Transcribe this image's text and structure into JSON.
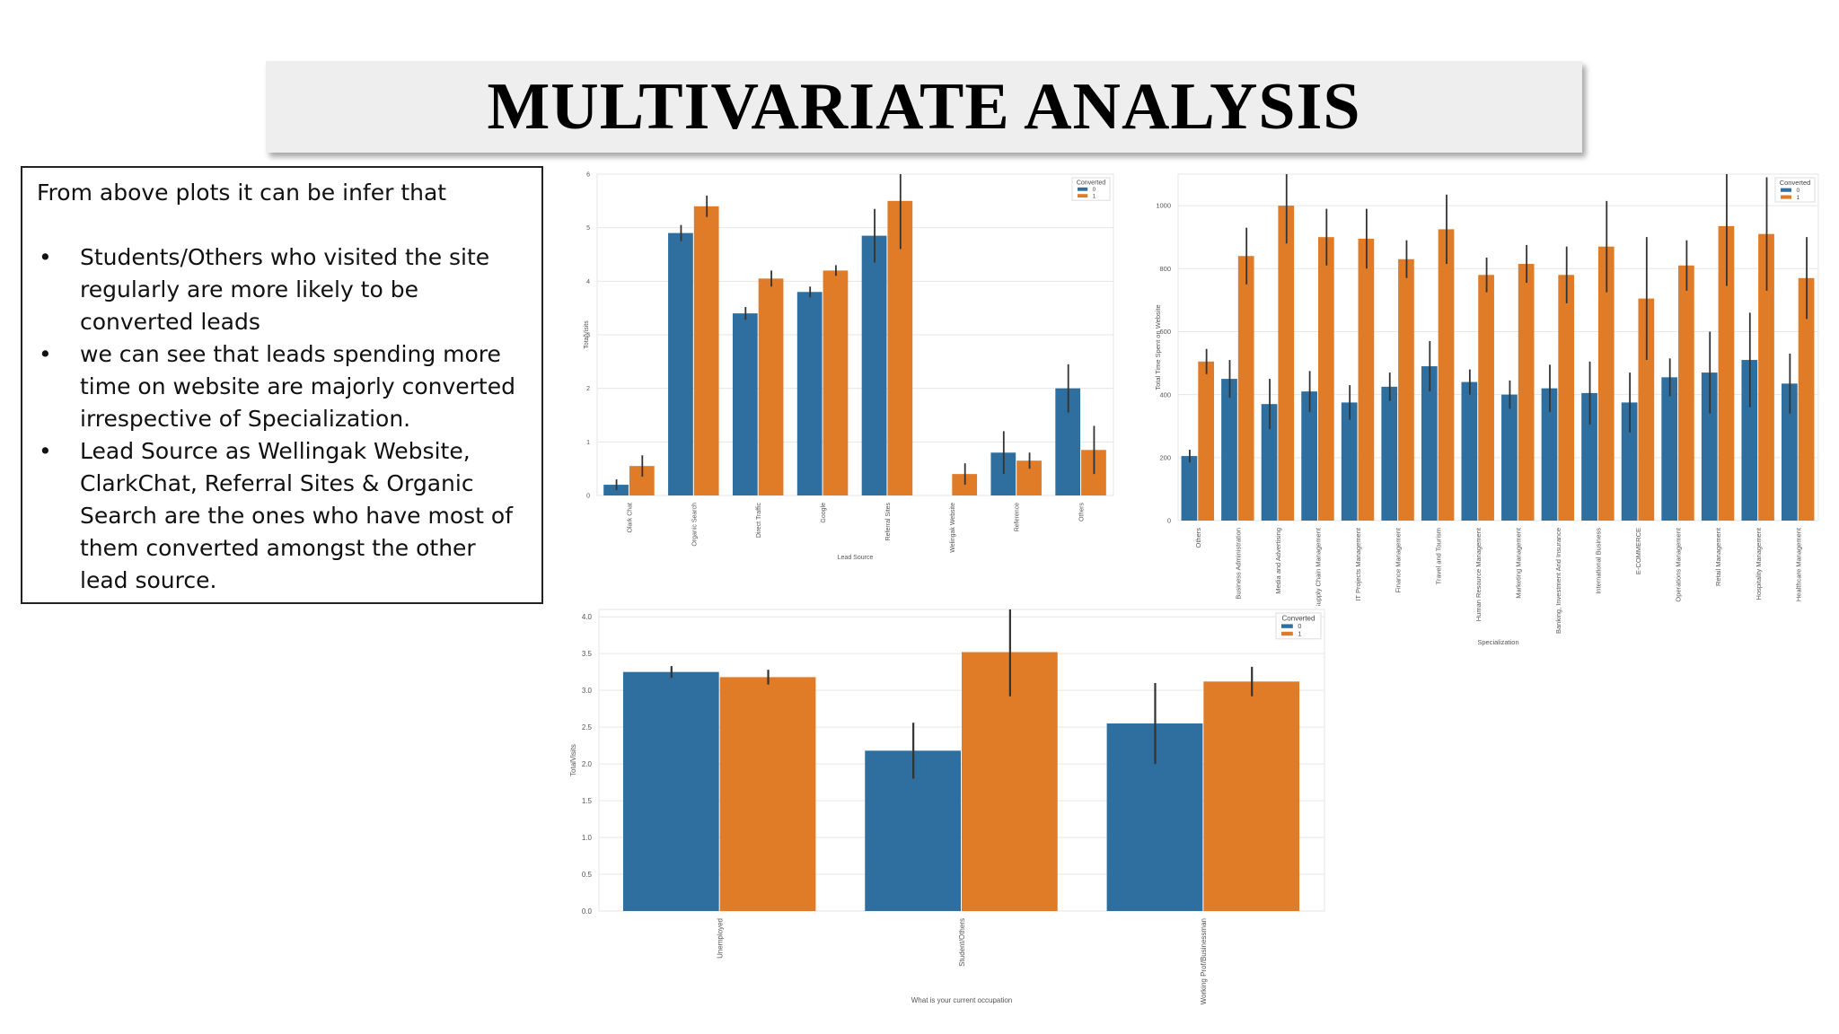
{
  "slide": {
    "title": "MULTIVARIATE ANALYSIS",
    "intro": "From above plots it can be infer that",
    "bullets": [
      "Students/Others who visited the site regularly are more likely to be converted leads",
      "we can see that leads spending more time on website are majorly converted irrespective of Specialization.",
      " Lead Source as Wellingak Website, ClarkChat,  Referral Sites & Organic Search are the ones who have most of them converted amongst the other lead source."
    ]
  },
  "colors": {
    "series0": "#2e6fa0",
    "series1": "#e07b27",
    "errbar": "#333333",
    "grid": "#e6e6e6"
  },
  "chart_data": [
    {
      "type": "bar",
      "xlabel": "Lead Source",
      "ylabel": "TotalVisits",
      "ylim": [
        0,
        6
      ],
      "yticks": [
        0,
        1,
        2,
        3,
        4,
        5,
        6
      ],
      "ytick_labels": [
        "0",
        "1",
        "2",
        "3",
        "4",
        "5",
        "6"
      ],
      "legend": {
        "title": "Converted",
        "position": "top-right"
      },
      "categories": [
        "Olark Chat",
        "Organic Search",
        "Direct Traffic",
        "Google",
        "Referral Sites",
        "Welingak Website",
        "Reference",
        "Others"
      ],
      "series": [
        {
          "name": "0",
          "values": [
            0.2,
            4.9,
            3.4,
            3.8,
            4.85,
            0,
            0.8,
            2.0
          ],
          "err": [
            0.1,
            0.15,
            0.12,
            0.1,
            0.5,
            0,
            0.4,
            0.45
          ]
        },
        {
          "name": "1",
          "values": [
            0.55,
            5.4,
            4.05,
            4.2,
            5.5,
            0.4,
            0.65,
            0.85
          ],
          "err": [
            0.2,
            0.2,
            0.15,
            0.1,
            0.9,
            0.2,
            0.15,
            0.45
          ]
        }
      ]
    },
    {
      "type": "bar",
      "xlabel": "Specialization",
      "ylabel": "Total Time Spent on Website",
      "ylim": [
        0,
        1100
      ],
      "yticks": [
        0,
        200,
        400,
        600,
        800,
        1000
      ],
      "ytick_labels": [
        "0",
        "200",
        "400",
        "600",
        "800",
        "1000"
      ],
      "legend": {
        "title": "Converted",
        "position": "top-right"
      },
      "categories": [
        "Others",
        "Business Administration",
        "Media and Advertising",
        "Supply Chain Management",
        "IT Projects Management",
        "Finance Management",
        "Travel and Tourism",
        "Human Resource Management",
        "Marketing Management",
        "Banking, Investment And Insurance",
        "International Business",
        "E-COMMERCE",
        "Operations Management",
        "Retail Management",
        "Hospitality Management",
        "Healthcare Management"
      ],
      "series": [
        {
          "name": "0",
          "values": [
            205,
            450,
            370,
            410,
            375,
            425,
            490,
            440,
            400,
            420,
            405,
            375,
            455,
            470,
            510,
            435
          ],
          "err": [
            20,
            60,
            80,
            65,
            55,
            45,
            80,
            40,
            45,
            75,
            100,
            95,
            60,
            130,
            150,
            95
          ]
        },
        {
          "name": "1",
          "values": [
            505,
            840,
            1000,
            900,
            895,
            830,
            925,
            780,
            815,
            780,
            870,
            705,
            810,
            935,
            910,
            770
          ],
          "err": [
            40,
            90,
            120,
            90,
            95,
            60,
            110,
            55,
            60,
            90,
            145,
            195,
            80,
            190,
            180,
            130
          ]
        }
      ]
    },
    {
      "type": "bar",
      "xlabel": "What is your current occupation",
      "ylabel": "TotalVisits",
      "ylim": [
        0,
        4.1
      ],
      "yticks": [
        0,
        0.5,
        1,
        1.5,
        2,
        2.5,
        3,
        3.5,
        4
      ],
      "ytick_labels": [
        "0.0",
        "0.5",
        "1.0",
        "1.5",
        "2.0",
        "2.5",
        "3.0",
        "3.5",
        "4.0"
      ],
      "legend": {
        "title": "Converted",
        "position": "top-right"
      },
      "categories": [
        "Unemployed",
        "Student/Others",
        "Working Prof/Businessman"
      ],
      "series": [
        {
          "name": "0",
          "values": [
            3.25,
            2.18,
            2.55
          ],
          "err": [
            0.08,
            0.38,
            0.55
          ]
        },
        {
          "name": "1",
          "values": [
            3.18,
            3.52,
            3.12
          ],
          "err": [
            0.1,
            0.6,
            0.2
          ]
        }
      ]
    }
  ]
}
